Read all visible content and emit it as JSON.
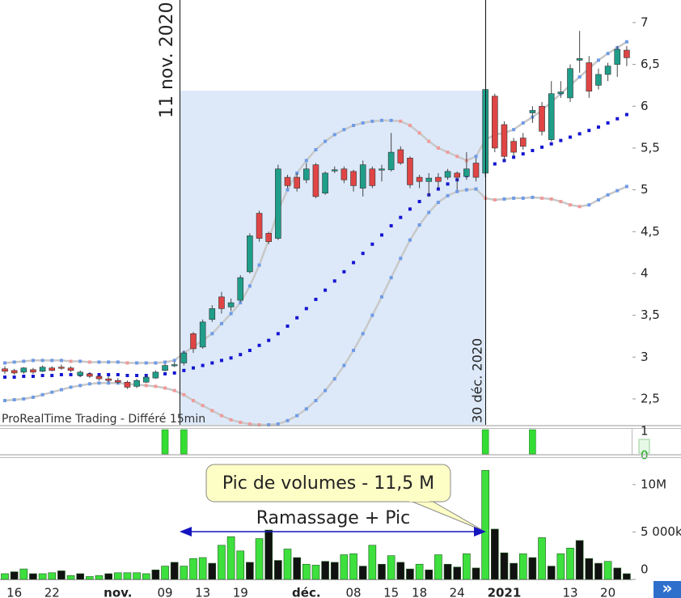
{
  "chart_data": [
    {
      "type": "candlestick",
      "ylim": [
        2.19,
        7.27
      ],
      "yticks": [
        {
          "value": 2.5,
          "label": "2,5"
        },
        3,
        {
          "value": 3.5,
          "label": "3,5"
        },
        4,
        {
          "value": 4.5,
          "label": "4,5"
        },
        5,
        {
          "value": 5.5,
          "label": "5,5"
        },
        6,
        {
          "value": 6.5,
          "label": "6,5"
        },
        7
      ],
      "open": [
        2.86,
        2.84,
        2.82,
        2.85,
        2.83,
        2.87,
        2.88,
        2.87,
        2.78,
        2.8,
        2.77,
        2.74,
        2.72,
        2.7,
        2.65,
        2.7,
        2.75,
        2.84,
        2.91,
        2.93,
        3.28,
        3.12,
        3.45,
        3.72,
        3.6,
        3.68,
        4.02,
        4.72,
        4.48,
        4.42,
        5.15,
        5.15,
        5.12,
        5.3,
        4.96,
        5.24,
        5.25,
        5.22,
        5.02,
        5.25,
        5.24,
        5.24,
        5.48,
        5.38,
        5.15,
        5.1,
        5.15,
        5.15,
        5.2,
        5.16,
        5.32,
        5.2,
        6.12,
        5.78,
        5.58,
        5.62,
        5.92,
        6.0,
        5.6,
        6.15,
        6.1,
        6.55,
        6.52,
        6.25,
        6.38,
        6.5,
        6.67
      ],
      "high": [
        2.89,
        2.86,
        2.88,
        2.87,
        2.9,
        2.89,
        2.91,
        2.89,
        2.84,
        2.82,
        2.79,
        2.77,
        2.75,
        2.72,
        2.74,
        2.78,
        2.84,
        2.92,
        2.94,
        3.08,
        3.3,
        3.45,
        3.62,
        3.78,
        3.7,
        3.98,
        4.48,
        4.75,
        4.5,
        5.3,
        5.18,
        5.2,
        5.32,
        5.32,
        5.22,
        5.28,
        5.28,
        5.24,
        5.35,
        5.28,
        5.3,
        5.68,
        5.52,
        5.4,
        5.18,
        5.2,
        5.2,
        5.25,
        5.22,
        5.45,
        5.38,
        6.2,
        6.15,
        5.82,
        5.62,
        5.68,
        6.0,
        6.05,
        6.3,
        6.3,
        6.5,
        6.9,
        6.6,
        6.45,
        6.52,
        6.72,
        6.72
      ],
      "low": [
        2.8,
        2.79,
        2.8,
        2.8,
        2.82,
        2.83,
        2.85,
        2.82,
        2.76,
        2.75,
        2.72,
        2.7,
        2.68,
        2.62,
        2.63,
        2.69,
        2.74,
        2.83,
        2.88,
        2.9,
        3.05,
        3.1,
        3.42,
        3.52,
        3.55,
        3.66,
        4.0,
        4.38,
        4.35,
        4.4,
        5.02,
        4.98,
        5.08,
        4.9,
        4.94,
        5.2,
        5.08,
        4.98,
        4.92,
        5.02,
        5.1,
        5.22,
        5.3,
        5.02,
        5.02,
        4.92,
        5.02,
        5.12,
        5.0,
        5.12,
        5.1,
        5.15,
        5.45,
        5.35,
        5.4,
        5.48,
        5.8,
        5.65,
        5.58,
        6.1,
        6.05,
        6.4,
        6.1,
        6.2,
        6.3,
        6.35,
        6.48
      ],
      "close": [
        2.83,
        2.81,
        2.87,
        2.82,
        2.88,
        2.84,
        2.87,
        2.84,
        2.82,
        2.77,
        2.74,
        2.72,
        2.7,
        2.64,
        2.72,
        2.76,
        2.82,
        2.9,
        2.91,
        3.05,
        3.1,
        3.42,
        3.58,
        3.58,
        3.65,
        3.95,
        4.45,
        4.42,
        4.38,
        5.25,
        5.05,
        5.02,
        5.25,
        4.92,
        5.2,
        5.24,
        5.12,
        5.05,
        5.3,
        5.05,
        5.25,
        5.45,
        5.32,
        5.06,
        5.1,
        5.14,
        5.1,
        5.22,
        5.15,
        5.25,
        5.15,
        6.2,
        5.5,
        5.4,
        5.45,
        5.52,
        5.95,
        5.7,
        6.15,
        6.17,
        6.45,
        6.57,
        6.18,
        6.38,
        6.48,
        6.68,
        6.58
      ],
      "up_color": "#1f9e8a",
      "down_color": "#e04545",
      "wick_color": "#444444",
      "upper_band": [
        2.93,
        2.94,
        2.95,
        2.96,
        2.96,
        2.96,
        2.96,
        2.95,
        2.95,
        2.94,
        2.94,
        2.94,
        2.94,
        2.93,
        2.93,
        2.93,
        2.93,
        2.94,
        2.96,
        3.05,
        3.12,
        3.2,
        3.28,
        3.4,
        3.52,
        3.65,
        3.85,
        4.1,
        4.4,
        4.75,
        5.0,
        5.2,
        5.35,
        5.48,
        5.58,
        5.66,
        5.72,
        5.77,
        5.8,
        5.82,
        5.83,
        5.83,
        5.82,
        5.77,
        5.68,
        5.58,
        5.5,
        5.45,
        5.4,
        5.35,
        5.4,
        5.6,
        5.66,
        5.68,
        5.72,
        5.8,
        5.87,
        5.95,
        6.05,
        6.15,
        6.25,
        6.35,
        6.45,
        6.55,
        6.63,
        6.7,
        6.77
      ],
      "middle_band": [
        2.76,
        2.76,
        2.77,
        2.77,
        2.78,
        2.78,
        2.79,
        2.79,
        2.79,
        2.79,
        2.79,
        2.79,
        2.79,
        2.78,
        2.78,
        2.78,
        2.79,
        2.8,
        2.81,
        2.84,
        2.87,
        2.9,
        2.93,
        2.96,
        2.99,
        3.03,
        3.08,
        3.14,
        3.2,
        3.28,
        3.37,
        3.47,
        3.58,
        3.69,
        3.8,
        3.91,
        4.02,
        4.13,
        4.24,
        4.35,
        4.46,
        4.57,
        4.67,
        4.77,
        4.86,
        4.94,
        5.01,
        5.07,
        5.12,
        5.17,
        5.21,
        5.27,
        5.31,
        5.35,
        5.39,
        5.43,
        5.47,
        5.51,
        5.55,
        5.59,
        5.63,
        5.67,
        5.71,
        5.75,
        5.8,
        5.85,
        5.9
      ],
      "lower_band": [
        2.48,
        2.49,
        2.5,
        2.52,
        2.55,
        2.58,
        2.61,
        2.64,
        2.66,
        2.68,
        2.69,
        2.69,
        2.69,
        2.68,
        2.67,
        2.66,
        2.65,
        2.63,
        2.6,
        2.55,
        2.48,
        2.42,
        2.36,
        2.3,
        2.25,
        2.22,
        2.2,
        2.19,
        2.19,
        2.2,
        2.24,
        2.3,
        2.38,
        2.48,
        2.6,
        2.74,
        2.9,
        3.08,
        3.28,
        3.5,
        3.72,
        3.95,
        4.18,
        4.4,
        4.58,
        4.73,
        4.85,
        4.93,
        4.98,
        5.0,
        5.01,
        4.9,
        4.88,
        4.89,
        4.9,
        4.9,
        4.91,
        4.9,
        4.89,
        4.86,
        4.82,
        4.8,
        4.82,
        4.88,
        4.94,
        4.99,
        5.04
      ],
      "band_line_color": "#c8c8c8",
      "band_rising_color": "#6f9be6",
      "band_falling_color": "#f09a9a",
      "middle_color": "#1414d2",
      "annotations": [
        "11 nov. 2020",
        "30 déc. 2020",
        "ProRealTime Trading - Différé 15min"
      ]
    },
    {
      "type": "signal",
      "ylim": [
        0,
        1
      ],
      "yticks": [
        0,
        1
      ],
      "color": "#33dd33",
      "values": [
        0,
        0,
        0,
        0,
        0,
        0,
        0,
        0,
        0,
        0,
        0,
        0,
        0,
        0,
        0,
        0,
        0,
        1,
        0,
        1,
        0,
        0,
        0,
        0,
        0,
        0,
        0,
        0,
        0,
        0,
        0,
        0,
        0,
        0,
        0,
        0,
        0,
        0,
        0,
        0,
        0,
        0,
        0,
        0,
        0,
        0,
        0,
        0,
        0,
        0,
        0,
        1,
        0,
        0,
        0,
        0,
        1,
        0,
        0,
        0,
        0,
        0,
        0,
        0,
        0,
        0,
        0
      ]
    },
    {
      "type": "bar",
      "categories": [
        null,
        "16",
        null,
        null,
        null,
        "22",
        null,
        null,
        null,
        null,
        null,
        null,
        "nov.",
        null,
        null,
        null,
        null,
        "09",
        null,
        null,
        null,
        "13",
        null,
        null,
        null,
        "19",
        null,
        null,
        null,
        null,
        null,
        null,
        "déc.",
        null,
        null,
        null,
        null,
        "08",
        null,
        null,
        null,
        "15",
        null,
        null,
        "18",
        null,
        null,
        null,
        "24",
        null,
        null,
        null,
        null,
        "2021",
        null,
        null,
        null,
        null,
        null,
        null,
        "13",
        null,
        null,
        null,
        "20",
        null,
        null
      ],
      "major_ticks": [
        12,
        32,
        53
      ],
      "values": [
        600000,
        800000,
        1100000,
        600000,
        600000,
        700000,
        900000,
        400000,
        600000,
        300000,
        400000,
        600000,
        700000,
        700000,
        700000,
        600000,
        1000000,
        1400000,
        1800000,
        1400000,
        2200000,
        2300000,
        1700000,
        3600000,
        4500000,
        3000000,
        1800000,
        4300000,
        5200000,
        2000000,
        3200000,
        2300000,
        1600000,
        1500000,
        1900000,
        1800000,
        2600000,
        2700000,
        1400000,
        3600000,
        1600000,
        2500000,
        1800000,
        1100000,
        1600000,
        1000000,
        2600000,
        1600000,
        1300000,
        2700000,
        1200000,
        11500000,
        5300000,
        2800000,
        1700000,
        2700000,
        2300000,
        4400000,
        1400000,
        2700000,
        3300000,
        4100000,
        2200000,
        1700000,
        1900000,
        1200000,
        600000
      ],
      "colors": [
        "#3ee03e",
        "#111111",
        "#3ee03e",
        "#111111",
        "#3ee03e",
        "#3ee03e",
        "#111111",
        "#3ee03e",
        "#111111",
        "#3ee03e",
        "#3ee03e",
        "#111111",
        "#3ee03e",
        "#3ee03e",
        "#3ee03e",
        "#3ee03e",
        "#111111",
        "#3ee03e",
        "#111111",
        "#3ee03e",
        "#3ee03e",
        "#3ee03e",
        "#111111",
        "#3ee03e",
        "#3ee03e",
        "#3ee03e",
        "#111111",
        "#3ee03e",
        "#111111",
        "#111111",
        "#3ee03e",
        "#111111",
        "#3ee03e",
        "#3ee03e",
        "#111111",
        "#111111",
        "#3ee03e",
        "#3ee03e",
        "#111111",
        "#3ee03e",
        "#111111",
        "#3ee03e",
        "#111111",
        "#111111",
        "#3ee03e",
        "#111111",
        "#3ee03e",
        "#111111",
        "#111111",
        "#3ee03e",
        "#111111",
        "#3ee03e",
        "#111111",
        "#111111",
        "#111111",
        "#3ee03e",
        "#111111",
        "#3ee03e",
        "#111111",
        "#3ee03e",
        "#3ee03e",
        "#111111",
        "#111111",
        "#111111",
        "#3ee03e",
        "#111111",
        "#111111"
      ],
      "ylim": [
        0,
        12800000
      ],
      "yticks": [
        0,
        {
          "value": 5000000,
          "label": "5 000k"
        },
        {
          "value": 10000000,
          "label": "10M"
        }
      ],
      "annotations": [
        "Pic de volumes - 11,5 M",
        "Ramassage + Pic"
      ]
    }
  ],
  "toolbar": {
    "next": "»"
  }
}
